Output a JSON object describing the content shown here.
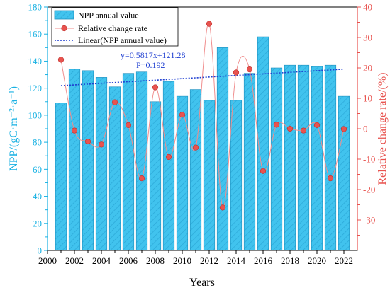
{
  "chart_data": {
    "type": "bar",
    "xlabel": "Years",
    "ylabel_left": "NPP/(gC·m⁻²·a⁻¹)",
    "ylabel_right": "Relative change rate/(%)",
    "ylim_left": [
      0,
      180
    ],
    "ylim_right": [
      -40,
      40
    ],
    "xlim": [
      2000,
      2023
    ],
    "x": [
      2001,
      2002,
      2003,
      2004,
      2005,
      2006,
      2007,
      2008,
      2009,
      2010,
      2011,
      2012,
      2013,
      2014,
      2015,
      2016,
      2017,
      2018,
      2019,
      2020,
      2021,
      2022
    ],
    "xticks": [
      "2000",
      "2002",
      "2004",
      "2006",
      "2008",
      "2010",
      "2012",
      "2014",
      "2016",
      "2018",
      "2020",
      "2022"
    ],
    "yticks_left": [
      "0",
      "20",
      "40",
      "60",
      "80",
      "100",
      "120",
      "140",
      "160",
      "180"
    ],
    "yticks_right": [
      "-30",
      "-20",
      "-10",
      "0",
      "10",
      "20",
      "30",
      "40"
    ],
    "series": [
      {
        "name": "NPP annual value",
        "kind": "bar",
        "axis": "left",
        "values": [
          109,
          134,
          133,
          128,
          121,
          131,
          132,
          110,
          125,
          114,
          119,
          111,
          150,
          111,
          131,
          158,
          135,
          137,
          137,
          136,
          137,
          114
        ]
      },
      {
        "name": "Relative change rate",
        "kind": "line-marker",
        "axis": "right",
        "values": [
          22.7,
          -0.6,
          -4.2,
          -5.2,
          8.7,
          1.2,
          -16.3,
          13.6,
          -9.3,
          4.6,
          -6.2,
          34.5,
          -25.9,
          18.5,
          19.5,
          -13.9,
          1.3,
          0.0,
          -0.6,
          1.2,
          -16.3,
          -0.1
        ]
      },
      {
        "name": "Linear(NPP annual value)",
        "kind": "trend",
        "axis": "left",
        "slope": 0.5817,
        "intercept": 121.28
      }
    ],
    "annotations": [
      "y=0.5817x+121.28",
      "P=0.192"
    ],
    "legend_position": "top-left",
    "grid": false
  },
  "colors": {
    "bar_fill": "#3ec3ee",
    "bar_stroke": "#1e8fbd",
    "left_axis": "#1ab2e3",
    "right_axis": "#e8534f",
    "marker": "#e8534f",
    "curve": "#f08e8e",
    "trend": "#1f3fd1"
  }
}
